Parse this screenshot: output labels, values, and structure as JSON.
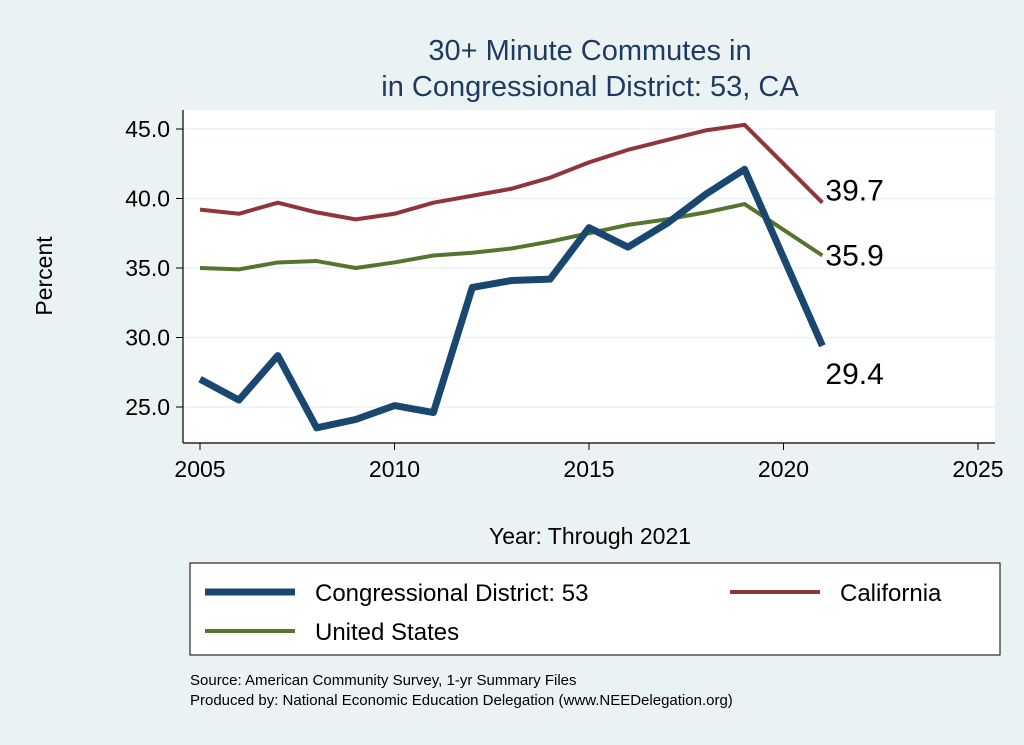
{
  "chart_data": {
    "type": "line",
    "title": [
      "30+ Minute Commutes in",
      "in Congressional District:  53, CA"
    ],
    "xlabel": "Year: Through 2021",
    "ylabel": "Percent",
    "xlim": [
      2005,
      2025
    ],
    "ylim": [
      25,
      45
    ],
    "xticks": [
      2005,
      2010,
      2015,
      2020,
      2025
    ],
    "xtick_labels": [
      "2005",
      "2010",
      "2015",
      "2020",
      "2025"
    ],
    "yticks": [
      25,
      30,
      35,
      40,
      45
    ],
    "ytick_labels": [
      "25.0",
      "30.0",
      "35.0",
      "40.0",
      "45.0"
    ],
    "x": [
      2005,
      2006,
      2007,
      2008,
      2009,
      2010,
      2011,
      2012,
      2013,
      2014,
      2015,
      2016,
      2017,
      2018,
      2019,
      2021
    ],
    "series": [
      {
        "name": "Congressional District:  53",
        "color": "#1a476f",
        "width": 7,
        "end_label": "29.4",
        "values": [
          27.0,
          25.5,
          28.7,
          23.5,
          24.1,
          25.1,
          24.6,
          33.6,
          34.1,
          34.2,
          37.9,
          36.5,
          38.2,
          40.3,
          42.1,
          29.4
        ]
      },
      {
        "name": "California",
        "color": "#90353b",
        "width": 4,
        "end_label": "39.7",
        "values": [
          39.2,
          38.9,
          39.7,
          39.0,
          38.5,
          38.9,
          39.7,
          40.2,
          40.7,
          41.5,
          42.6,
          43.5,
          44.2,
          44.9,
          45.3,
          39.7
        ]
      },
      {
        "name": "United States",
        "color": "#55752f",
        "width": 4,
        "end_label": "35.9",
        "values": [
          35.0,
          34.9,
          35.4,
          35.5,
          35.0,
          35.4,
          35.9,
          36.1,
          36.4,
          36.9,
          37.5,
          38.1,
          38.5,
          39.0,
          39.6,
          35.9
        ]
      }
    ],
    "legend": "bottom",
    "grid": true,
    "notes": [
      "Source: American Community Survey, 1-yr Summary Files",
      "Produced by: National Economic Education Delegation (www.NEEDelegation.org)"
    ]
  }
}
